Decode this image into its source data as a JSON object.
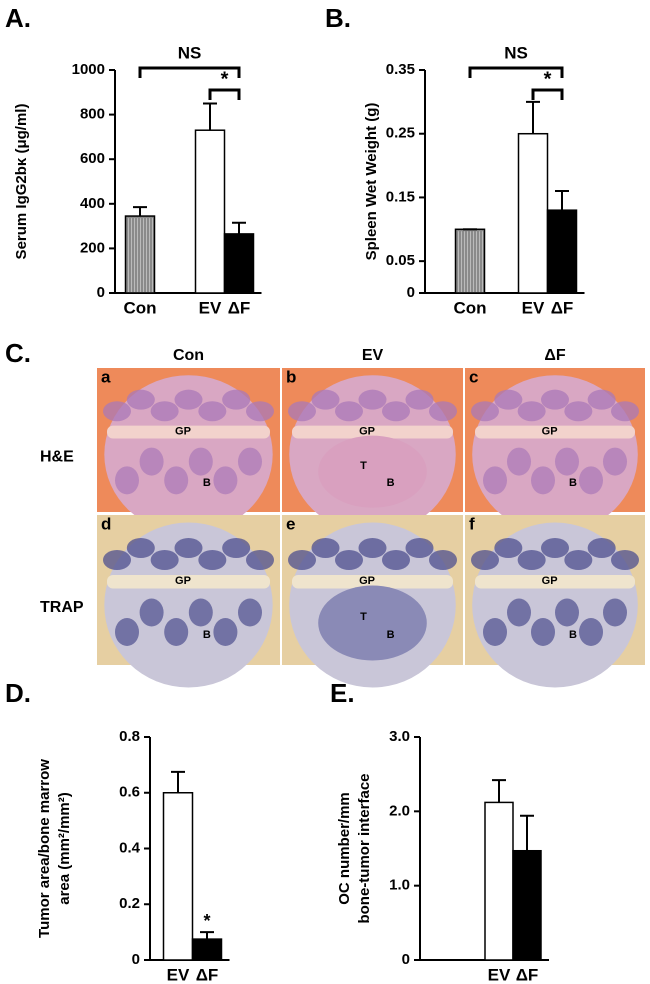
{
  "chart_data": [
    {
      "type": "bar",
      "panel": "A.",
      "ylabel": [
        "Serum IgG2bκ (μg/ml)"
      ],
      "categories": [
        "Con",
        "EV",
        "ΔF"
      ],
      "values": [
        345,
        730,
        265
      ],
      "errors": [
        40,
        120,
        50
      ],
      "colors": [
        "#8a8a8a",
        "#ffffff",
        "#000000"
      ],
      "ylim": [
        0,
        1000
      ],
      "yticks": [
        0,
        200,
        400,
        600,
        800,
        1000
      ],
      "annotations": [
        "NS",
        "*"
      ]
    },
    {
      "type": "bar",
      "panel": "B.",
      "ylabel": [
        "Spleen Wet Weight (g)"
      ],
      "categories": [
        "Con",
        "EV",
        "ΔF"
      ],
      "values": [
        0.1,
        0.25,
        0.13
      ],
      "errors": [
        0,
        0.05,
        0.03
      ],
      "colors": [
        "#8a8a8a",
        "#ffffff",
        "#000000"
      ],
      "ylim": [
        0,
        0.35
      ],
      "yticks": [
        0,
        0.05,
        0.15,
        0.25,
        0.35
      ],
      "annotations": [
        "NS",
        "*"
      ]
    },
    {
      "type": "bar",
      "panel": "D.",
      "ylabel": [
        "Tumor area/bone marrow",
        "area (mm²/mm²)"
      ],
      "categories": [
        "EV",
        "ΔF"
      ],
      "values": [
        0.6,
        0.075
      ],
      "errors": [
        0.075,
        0.025
      ],
      "colors": [
        "#ffffff",
        "#000000"
      ],
      "ylim": [
        0,
        0.8
      ],
      "yticks": [
        0,
        0.2,
        0.4,
        0.6,
        0.8
      ],
      "annotations": [
        "*"
      ]
    },
    {
      "type": "bar",
      "panel": "E.",
      "ylabel": [
        "OC number/mm",
        "bone-tumor interface"
      ],
      "categories": [
        "EV",
        "ΔF"
      ],
      "values": [
        2.12,
        1.47
      ],
      "errors": [
        0.3,
        0.47
      ],
      "colors": [
        "#ffffff",
        "#000000"
      ],
      "ylim": [
        0,
        3
      ],
      "yticks": [
        0,
        {
          "value": 1,
          "label": "1.0"
        },
        {
          "value": 2,
          "label": "2.0"
        },
        {
          "value": 3,
          "label": "3.0"
        }
      ],
      "annotations": []
    }
  ],
  "histology": {
    "panel": "C.",
    "columns": [
      "Con",
      "EV",
      "ΔF"
    ],
    "rows": [
      {
        "label": "H&E",
        "images": [
          {
            "letter": "a",
            "labels": [
              "GP",
              "B"
            ]
          },
          {
            "letter": "b",
            "labels": [
              "GP",
              "T",
              "B"
            ]
          },
          {
            "letter": "c",
            "labels": [
              "GP",
              "B"
            ]
          }
        ]
      },
      {
        "label": "TRAP",
        "images": [
          {
            "letter": "d",
            "labels": [
              "GP",
              "B"
            ]
          },
          {
            "letter": "e",
            "labels": [
              "GP",
              "T",
              "B"
            ]
          },
          {
            "letter": "f",
            "labels": [
              "GP",
              "B"
            ]
          }
        ]
      }
    ]
  }
}
